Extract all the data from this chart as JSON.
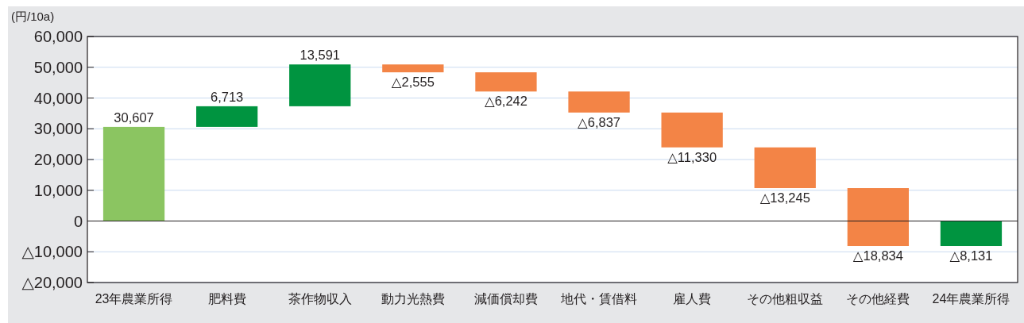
{
  "chart_data": {
    "type": "bar",
    "ylabel": "(円/10a)",
    "categories": [
      "23年農業所得",
      "肥料費",
      "茶作物収入",
      "動力光熱費",
      "減価償却費",
      "地代・賃借料",
      "雇人費",
      "その他粗収益",
      "その他経費",
      "24年農業所得"
    ],
    "base": [
      0,
      30607,
      37320,
      50911,
      48356,
      42114,
      35277,
      23947,
      10702,
      0
    ],
    "values": [
      30607,
      6713,
      13591,
      -2555,
      -6242,
      -6837,
      -11330,
      -13245,
      -18834,
      -8131
    ],
    "colors": [
      "#8bc561",
      "#009440",
      "#009440",
      "#f38446",
      "#f38446",
      "#f38446",
      "#f38446",
      "#f38446",
      "#f38446",
      "#009440"
    ],
    "value_labels": [
      "30,607",
      "6,713",
      "13,591",
      "△2,555",
      "△6,242",
      "△6,837",
      "△11,330",
      "△13,245",
      "△18,834",
      "△8,131"
    ],
    "ylim": [
      -20000,
      60000
    ],
    "yticks": [
      {
        "value": -20000,
        "label": "△20,000"
      },
      {
        "value": -10000,
        "label": "△10,000"
      },
      {
        "value": 0,
        "label": "0"
      },
      {
        "value": 10000,
        "label": "10,000"
      },
      {
        "value": 20000,
        "label": "20,000"
      },
      {
        "value": 30000,
        "label": "30,000"
      },
      {
        "value": 40000,
        "label": "40,000"
      },
      {
        "value": 50000,
        "label": "50,000"
      },
      {
        "value": 60000,
        "label": "60,000"
      }
    ],
    "grid": "y"
  }
}
